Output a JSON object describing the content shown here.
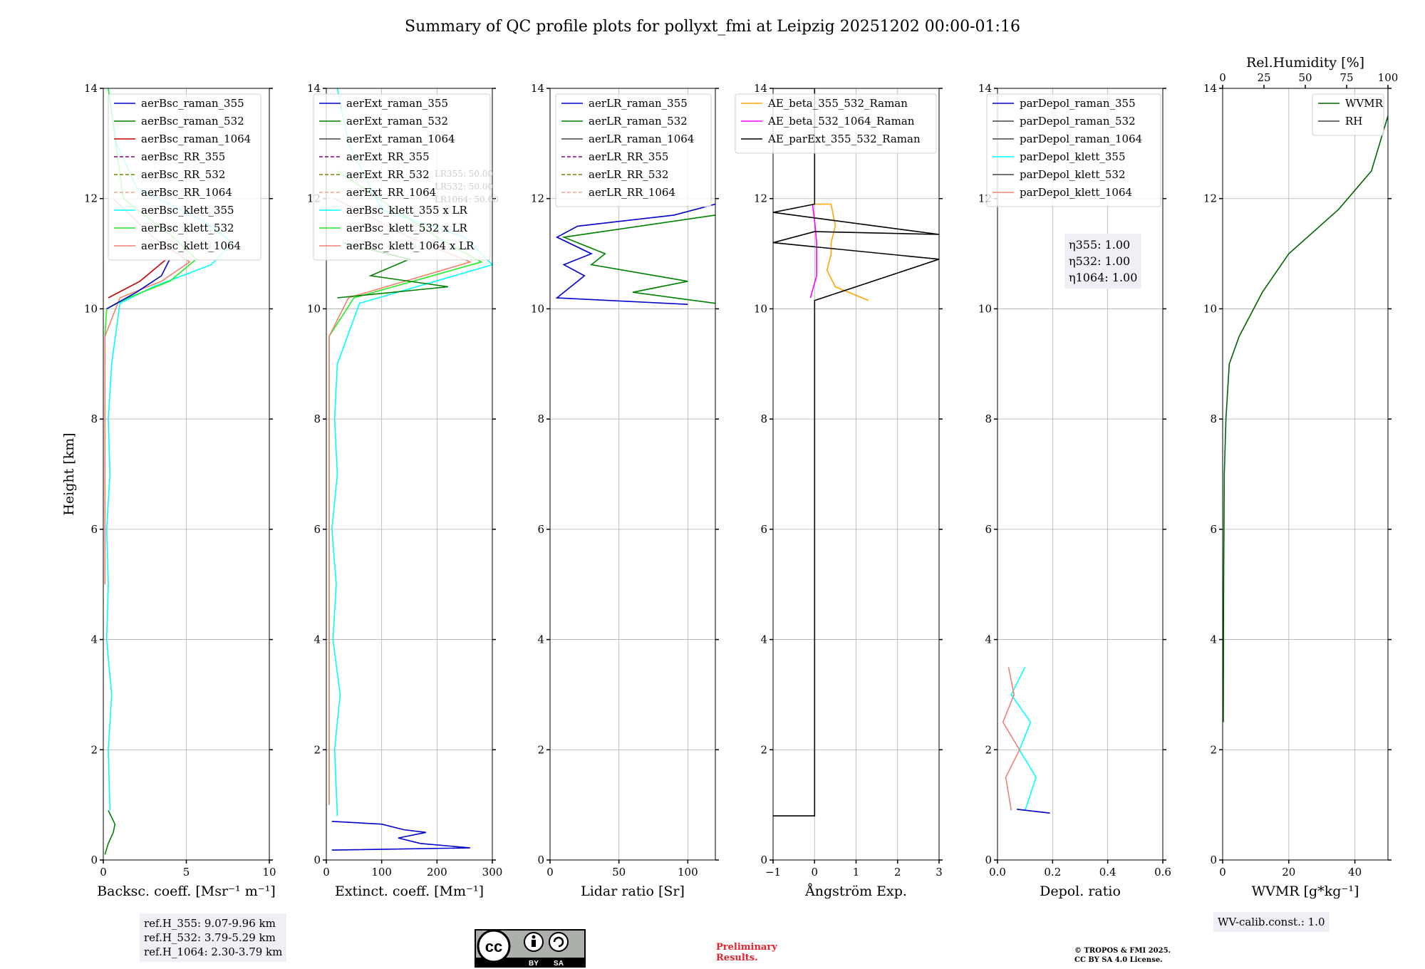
{
  "title": "Summary of QC profile plots for pollyxt_fmi at Leipzig 20251202 00:00-01:16",
  "chart_data": [
    {
      "type": "line",
      "id": "bsc",
      "xlabel": "Backsc. coeff. [Msr⁻¹ m⁻¹]",
      "ylabel": "Height [km]",
      "xlim": [
        0,
        10
      ],
      "ylim": [
        0,
        14
      ],
      "xticks": [
        "0",
        "5",
        "10"
      ],
      "yticks": [
        "0",
        "2",
        "4",
        "6",
        "8",
        "10",
        "12",
        "14"
      ],
      "grid": true,
      "legend": [
        "aerBsc_raman_355",
        "aerBsc_raman_532",
        "aerBsc_raman_1064",
        "aerBsc_RR_355",
        "aerBsc_RR_532",
        "aerBsc_RR_1064",
        "aerBsc_klett_355",
        "aerBsc_klett_532",
        "aerBsc_klett_1064"
      ],
      "series": [
        {
          "name": "aerBsc_klett_355",
          "color": "#00ffff",
          "x": [
            0.4,
            0.3,
            0.5,
            0.2,
            0.3,
            0.2,
            0.4,
            0.3,
            0.5,
            1.0,
            3.0,
            6.5,
            7.8,
            6.0,
            2.0,
            0.8,
            0.3
          ],
          "y": [
            0.9,
            2.0,
            3.0,
            4.0,
            5.0,
            6.0,
            7.0,
            8.0,
            9.0,
            10.1,
            10.4,
            10.8,
            11.2,
            11.6,
            12.2,
            13.0,
            14.0
          ]
        },
        {
          "name": "aerBsc_klett_532",
          "color": "#22ee22",
          "x": [
            0.1,
            0.1,
            0.2,
            1.5,
            4.0,
            5.6,
            4.2,
            1.2,
            0.3
          ],
          "y": [
            5.0,
            9.5,
            10.0,
            10.2,
            10.5,
            10.9,
            11.3,
            12.0,
            14.0
          ]
        },
        {
          "name": "aerBsc_klett_1064",
          "color": "#f08070",
          "x": [
            0.1,
            0.1,
            1.0,
            3.5,
            5.2,
            3.0,
            0.6
          ],
          "y": [
            5.0,
            9.5,
            10.2,
            10.5,
            10.85,
            11.3,
            12.0
          ]
        },
        {
          "name": "aerBsc_raman_355",
          "color": "#0000cc",
          "x": [
            0.2,
            2.0,
            3.5,
            4.0
          ],
          "y": [
            10.0,
            10.3,
            10.6,
            10.9
          ]
        },
        {
          "name": "aerBsc_raman_532",
          "color": "#008000",
          "x": [
            0.1,
            0.3,
            0.6,
            0.7,
            0.3
          ],
          "y": [
            0.1,
            0.3,
            0.5,
            0.65,
            0.9
          ]
        },
        {
          "name": "aerBsc_raman_1064",
          "color": "#cc0000",
          "x": [
            0.3,
            2.2,
            3.8
          ],
          "y": [
            10.2,
            10.5,
            10.9
          ]
        }
      ],
      "note": [
        "ref.H_355: 9.07-9.96 km",
        "ref.H_532: 3.79-5.29 km",
        "ref.H_1064: 2.30-3.79 km"
      ]
    },
    {
      "type": "line",
      "id": "ext",
      "xlabel": "Extinct. coeff. [Mm⁻¹]",
      "xlim": [
        0,
        300
      ],
      "ylim": [
        0,
        14
      ],
      "xticks": [
        "0",
        "100",
        "200",
        "300"
      ],
      "yticks": [
        "0",
        "2",
        "4",
        "6",
        "8",
        "10",
        "12",
        "14"
      ],
      "grid": true,
      "legend": [
        "aerExt_raman_355",
        "aerExt_raman_532",
        "aerExt_raman_1064",
        "aerExt_RR_355",
        "aerExt_RR_532",
        "aerExt_RR_1064",
        "aerBsc_klett_355 x LR",
        "aerBsc_klett_532 x LR",
        "aerBsc_klett_1064 x LR"
      ],
      "lr_labels": [
        "LR355: 50.00",
        "LR532: 50.00",
        "LR1064: 50.00"
      ],
      "series": [
        {
          "name": "aerBsc_klett_355 x LR",
          "color": "#00ffff",
          "x": [
            20,
            15,
            25,
            12,
            18,
            10,
            20,
            15,
            20,
            60,
            300,
            250,
            100,
            40,
            20
          ],
          "y": [
            0.8,
            2.0,
            3.0,
            4.0,
            5.0,
            6.0,
            7.0,
            8.0,
            9.0,
            10.1,
            10.8,
            11.3,
            11.8,
            13.0,
            14.0
          ]
        },
        {
          "name": "aerBsc_klett_532 x LR",
          "color": "#22ee22",
          "x": [
            5,
            5,
            50,
            280,
            200,
            20
          ],
          "y": [
            1.0,
            9.5,
            10.2,
            10.85,
            11.3,
            12.5
          ]
        },
        {
          "name": "aerBsc_klett_1064 x LR",
          "color": "#f08070",
          "x": [
            5,
            5,
            40,
            260,
            150,
            15
          ],
          "y": [
            1.0,
            9.5,
            10.2,
            10.85,
            11.3,
            12.0
          ]
        },
        {
          "name": "aerExt_raman_355",
          "color": "#0000cc",
          "x": [
            10,
            100,
            140,
            180,
            130,
            170,
            260,
            10
          ],
          "y": [
            0.7,
            0.65,
            0.55,
            0.5,
            0.4,
            0.3,
            0.22,
            0.18
          ]
        },
        {
          "name": "aerExt_raman_532",
          "color": "#008000",
          "x": [
            20,
            220,
            80,
            150,
            30
          ],
          "y": [
            10.2,
            10.4,
            10.6,
            10.9,
            11.2
          ]
        }
      ]
    },
    {
      "type": "line",
      "id": "lr",
      "xlabel": "Lidar ratio [Sr]",
      "xlim": [
        0,
        120
      ],
      "ylim": [
        0,
        14
      ],
      "xticks": [
        "0",
        "50",
        "100"
      ],
      "yticks": [
        "0",
        "2",
        "4",
        "6",
        "8",
        "10",
        "12",
        "14"
      ],
      "grid": true,
      "legend": [
        "aerLR_raman_355",
        "aerLR_raman_532",
        "aerLR_raman_1064",
        "aerLR_RR_355",
        "aerLR_RR_532",
        "aerLR_RR_1064"
      ],
      "series": [
        {
          "name": "aerLR_raman_355",
          "color": "#0000cc",
          "x": [
            100,
            5,
            25,
            10,
            30,
            5,
            20,
            90,
            120
          ],
          "y": [
            10.08,
            10.2,
            10.6,
            10.8,
            11.0,
            11.3,
            11.5,
            11.7,
            11.9
          ]
        },
        {
          "name": "aerLR_raman_532",
          "color": "#008000",
          "x": [
            120,
            60,
            100,
            30,
            40,
            10,
            120
          ],
          "y": [
            10.1,
            10.3,
            10.5,
            10.8,
            11.0,
            11.3,
            11.7
          ]
        }
      ]
    },
    {
      "type": "line",
      "id": "ae",
      "xlabel": "Ångström Exp.",
      "xlim": [
        -1,
        3
      ],
      "ylim": [
        0,
        14
      ],
      "xticks": [
        "−1",
        "0",
        "1",
        "2",
        "3"
      ],
      "yticks": [
        "0",
        "2",
        "4",
        "6",
        "8",
        "10",
        "12",
        "14"
      ],
      "grid": true,
      "legend": [
        "AE_beta_355_532_Raman",
        "AE_beta_532_1064_Raman",
        "AE_parExt_355_532_Raman"
      ],
      "series": [
        {
          "name": "AE_beta_355_532_Raman",
          "color": "#ffa500",
          "x": [
            1.3,
            0.5,
            0.3,
            0.4,
            0.4,
            0.5,
            0.4,
            0.0
          ],
          "y": [
            10.15,
            10.4,
            10.7,
            11.0,
            11.2,
            11.5,
            11.9,
            11.9
          ]
        },
        {
          "name": "AE_beta_532_1064_Raman",
          "color": "#ff00ff",
          "x": [
            -0.1,
            0.05,
            0.05,
            0.0,
            -0.05
          ],
          "y": [
            10.2,
            10.6,
            11.2,
            11.6,
            11.9
          ]
        },
        {
          "name": "AE_parExt_355_532_Raman",
          "color": "#000000",
          "x": [
            -1,
            0,
            0,
            3,
            -1,
            0,
            3,
            -1,
            0,
            0,
            -1
          ],
          "y": [
            0.8,
            0.8,
            10.15,
            10.9,
            11.2,
            11.4,
            11.35,
            11.75,
            11.9,
            14,
            14
          ]
        }
      ]
    },
    {
      "type": "line",
      "id": "depol",
      "xlabel": "Depol. ratio",
      "xlim": [
        0.0,
        0.6
      ],
      "ylim": [
        0,
        14
      ],
      "xticks": [
        "0.0",
        "0.2",
        "0.4",
        "0.6"
      ],
      "yticks": [
        "0",
        "2",
        "4",
        "6",
        "8",
        "10",
        "12",
        "14"
      ],
      "grid": true,
      "legend": [
        "parDepol_raman_355",
        "parDepol_raman_532",
        "parDepol_raman_1064",
        "parDepol_klett_355",
        "parDepol_klett_532",
        "parDepol_klett_1064"
      ],
      "series": [
        {
          "name": "parDepol_klett_355",
          "color": "#00ffff",
          "x": [
            0.1,
            0.14,
            0.08,
            0.12,
            0.05,
            0.1
          ],
          "y": [
            0.9,
            1.5,
            2.0,
            2.5,
            3.0,
            3.5
          ]
        },
        {
          "name": "parDepol_klett_1064",
          "color": "#f08070",
          "x": [
            0.05,
            0.03,
            0.08,
            0.02,
            0.06,
            0.04
          ],
          "y": [
            0.9,
            1.5,
            2.0,
            2.5,
            3.0,
            3.5
          ]
        },
        {
          "name": "parDepol_raman_355",
          "color": "#0000cc",
          "x": [
            0.07,
            0.19
          ],
          "y": [
            0.92,
            0.85
          ]
        }
      ],
      "eta": [
        "η355: 1.00",
        "η532: 1.00",
        "η1064: 1.00"
      ]
    },
    {
      "type": "line",
      "id": "wvmr",
      "xlabel": "WVMR [g*kg⁻¹]",
      "xlabel_top": "Rel.Humidity [%]",
      "xlim": [
        0,
        50
      ],
      "xlim_top": [
        0,
        100
      ],
      "ylim": [
        0,
        14
      ],
      "xticks": [
        "0",
        "20",
        "40"
      ],
      "xticks_top": [
        "0",
        "25",
        "50",
        "75",
        "100"
      ],
      "yticks": [
        "0",
        "2",
        "4",
        "6",
        "8",
        "10",
        "12",
        "14"
      ],
      "grid": true,
      "legend": [
        "WVMR",
        "RH"
      ],
      "series": [
        {
          "name": "WVMR",
          "color": "#006400",
          "x": [
            0.2,
            0.3,
            0.5,
            1.0,
            2.0,
            5.0,
            12.0,
            20.0,
            35.0,
            45.0,
            50.0
          ],
          "y": [
            2.5,
            5.0,
            7.0,
            8.0,
            9.0,
            9.5,
            10.3,
            11.0,
            11.8,
            12.5,
            13.5
          ]
        }
      ],
      "note": [
        "WV-calib.const.: 1.0"
      ]
    }
  ],
  "footer": {
    "cc_by": "BY",
    "cc_sa": "SA",
    "preliminary": [
      "Preliminary",
      "Results."
    ],
    "copyright": [
      "© TROPOS & FMI 2025.",
      "CC BY SA 4.0 License."
    ]
  }
}
